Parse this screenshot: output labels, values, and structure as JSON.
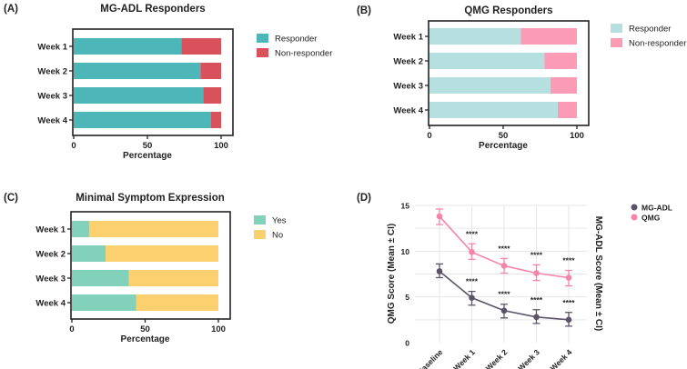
{
  "chart_data": [
    {
      "panel": "(A)",
      "type": "bar",
      "orientation": "horizontal",
      "stacked": true,
      "title": "MG-ADL Responders",
      "xlabel": "Percentage",
      "xlim": [
        0,
        100
      ],
      "xticks": [
        0,
        50,
        100
      ],
      "categories": [
        "Week 1",
        "Week 2",
        "Week 3",
        "Week 4"
      ],
      "series": [
        {
          "name": "Responder",
          "color": "#4db6b8",
          "values": [
            73,
            86,
            88,
            93
          ]
        },
        {
          "name": "Non-responder",
          "color": "#d9515b",
          "values": [
            27,
            14,
            12,
            7
          ]
        }
      ],
      "legend": "right"
    },
    {
      "panel": "(B)",
      "type": "bar",
      "orientation": "horizontal",
      "stacked": true,
      "title": "QMG Responders",
      "xlabel": "Percentage",
      "xlim": [
        0,
        100
      ],
      "xticks": [
        0,
        50,
        100
      ],
      "categories": [
        "Week 1",
        "Week 2",
        "Week 3",
        "Week 4"
      ],
      "series": [
        {
          "name": "Responder",
          "color": "#b6e0e0",
          "values": [
            62,
            78,
            82,
            87
          ]
        },
        {
          "name": "Non-responder",
          "color": "#fb9bb6",
          "values": [
            38,
            22,
            18,
            13
          ]
        }
      ],
      "legend": "right"
    },
    {
      "panel": "(C)",
      "type": "bar",
      "orientation": "horizontal",
      "stacked": true,
      "title": "Minimal Symptom Expression",
      "xlabel": "Percentage",
      "xlim": [
        0,
        100
      ],
      "xticks": [
        0,
        50,
        100
      ],
      "categories": [
        "Week 1",
        "Week 2",
        "Week 3",
        "Week 4"
      ],
      "series": [
        {
          "name": "Yes",
          "color": "#82d1bb",
          "values": [
            12,
            23,
            39,
            44
          ]
        },
        {
          "name": "No",
          "color": "#fdd06f",
          "values": [
            88,
            77,
            61,
            56
          ]
        }
      ],
      "legend": "right"
    },
    {
      "panel": "(D)",
      "type": "line",
      "ylabel": "QMG Score (Mean ± CI)",
      "ylabel_right": "MG-ADL Score (Mean ± CI)",
      "ylim": [
        0,
        15
      ],
      "yticks": [
        0,
        5,
        10,
        15
      ],
      "grid": true,
      "categories": [
        "Baseline",
        "Week 1",
        "Week 2",
        "Week 3",
        "Week 4"
      ],
      "series": [
        {
          "name": "MG-ADL",
          "color": "#5b5469",
          "values": [
            7.8,
            4.9,
            3.5,
            2.8,
            2.5
          ],
          "ci_low": [
            7.1,
            4.1,
            2.7,
            2.1,
            1.8
          ],
          "ci_high": [
            8.6,
            5.6,
            4.2,
            3.6,
            3.3
          ],
          "annotations": [
            "",
            "****",
            "****",
            "****",
            "****"
          ]
        },
        {
          "name": "QMG",
          "color": "#f585a8",
          "values": [
            13.8,
            9.9,
            8.4,
            7.6,
            7.1
          ],
          "ci_low": [
            12.9,
            9.1,
            7.6,
            6.8,
            6.2
          ],
          "ci_high": [
            14.6,
            10.8,
            9.2,
            8.5,
            7.9
          ],
          "annotations": [
            "",
            "****",
            "****",
            "****",
            "****"
          ]
        }
      ],
      "legend": "top-right"
    }
  ]
}
